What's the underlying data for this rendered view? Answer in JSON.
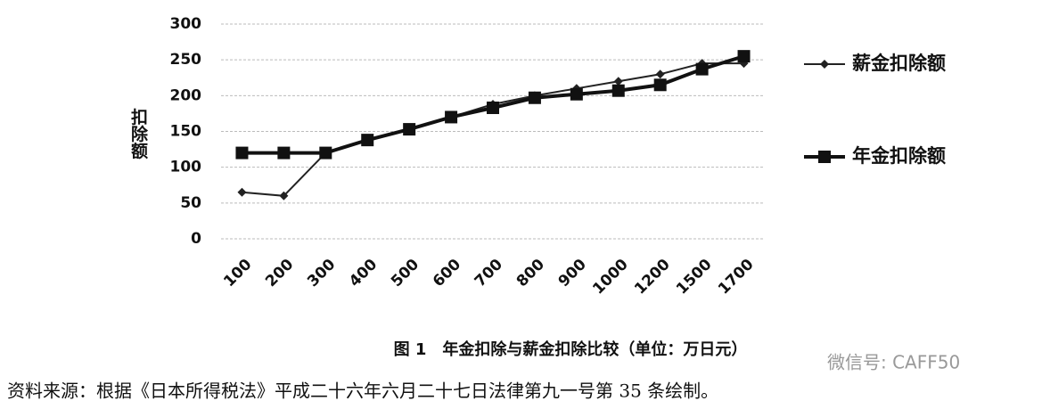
{
  "chart_data": {
    "type": "line",
    "title": "图 1　年金扣除与薪金扣除比较（单位：万日元）",
    "y_label": "扣除额",
    "source": "资料来源：根据《日本所得税法》平成二十六年六月二十七日法律第九一号第 35 条绘制。",
    "watermark": "微信号: CAFF50",
    "categories": [
      "100",
      "200",
      "300",
      "400",
      "500",
      "600",
      "700",
      "800",
      "900",
      "1000",
      "1200",
      "1500",
      "1700"
    ],
    "series": [
      {
        "name": "薪金扣除额",
        "color": "#222222",
        "marker": "diamond",
        "values": [
          65,
          60,
          120,
          137,
          153,
          170,
          188,
          200,
          210,
          220,
          230,
          245,
          245
        ]
      },
      {
        "name": "年金扣除额",
        "color": "#111111",
        "marker": "square",
        "values": [
          120,
          120,
          120,
          138,
          153,
          170,
          183,
          197,
          202,
          207,
          215,
          237,
          255
        ]
      }
    ],
    "ylim": [
      0,
      300
    ],
    "yticks": [
      0,
      50,
      100,
      150,
      200,
      250,
      300
    ],
    "grid": true
  }
}
